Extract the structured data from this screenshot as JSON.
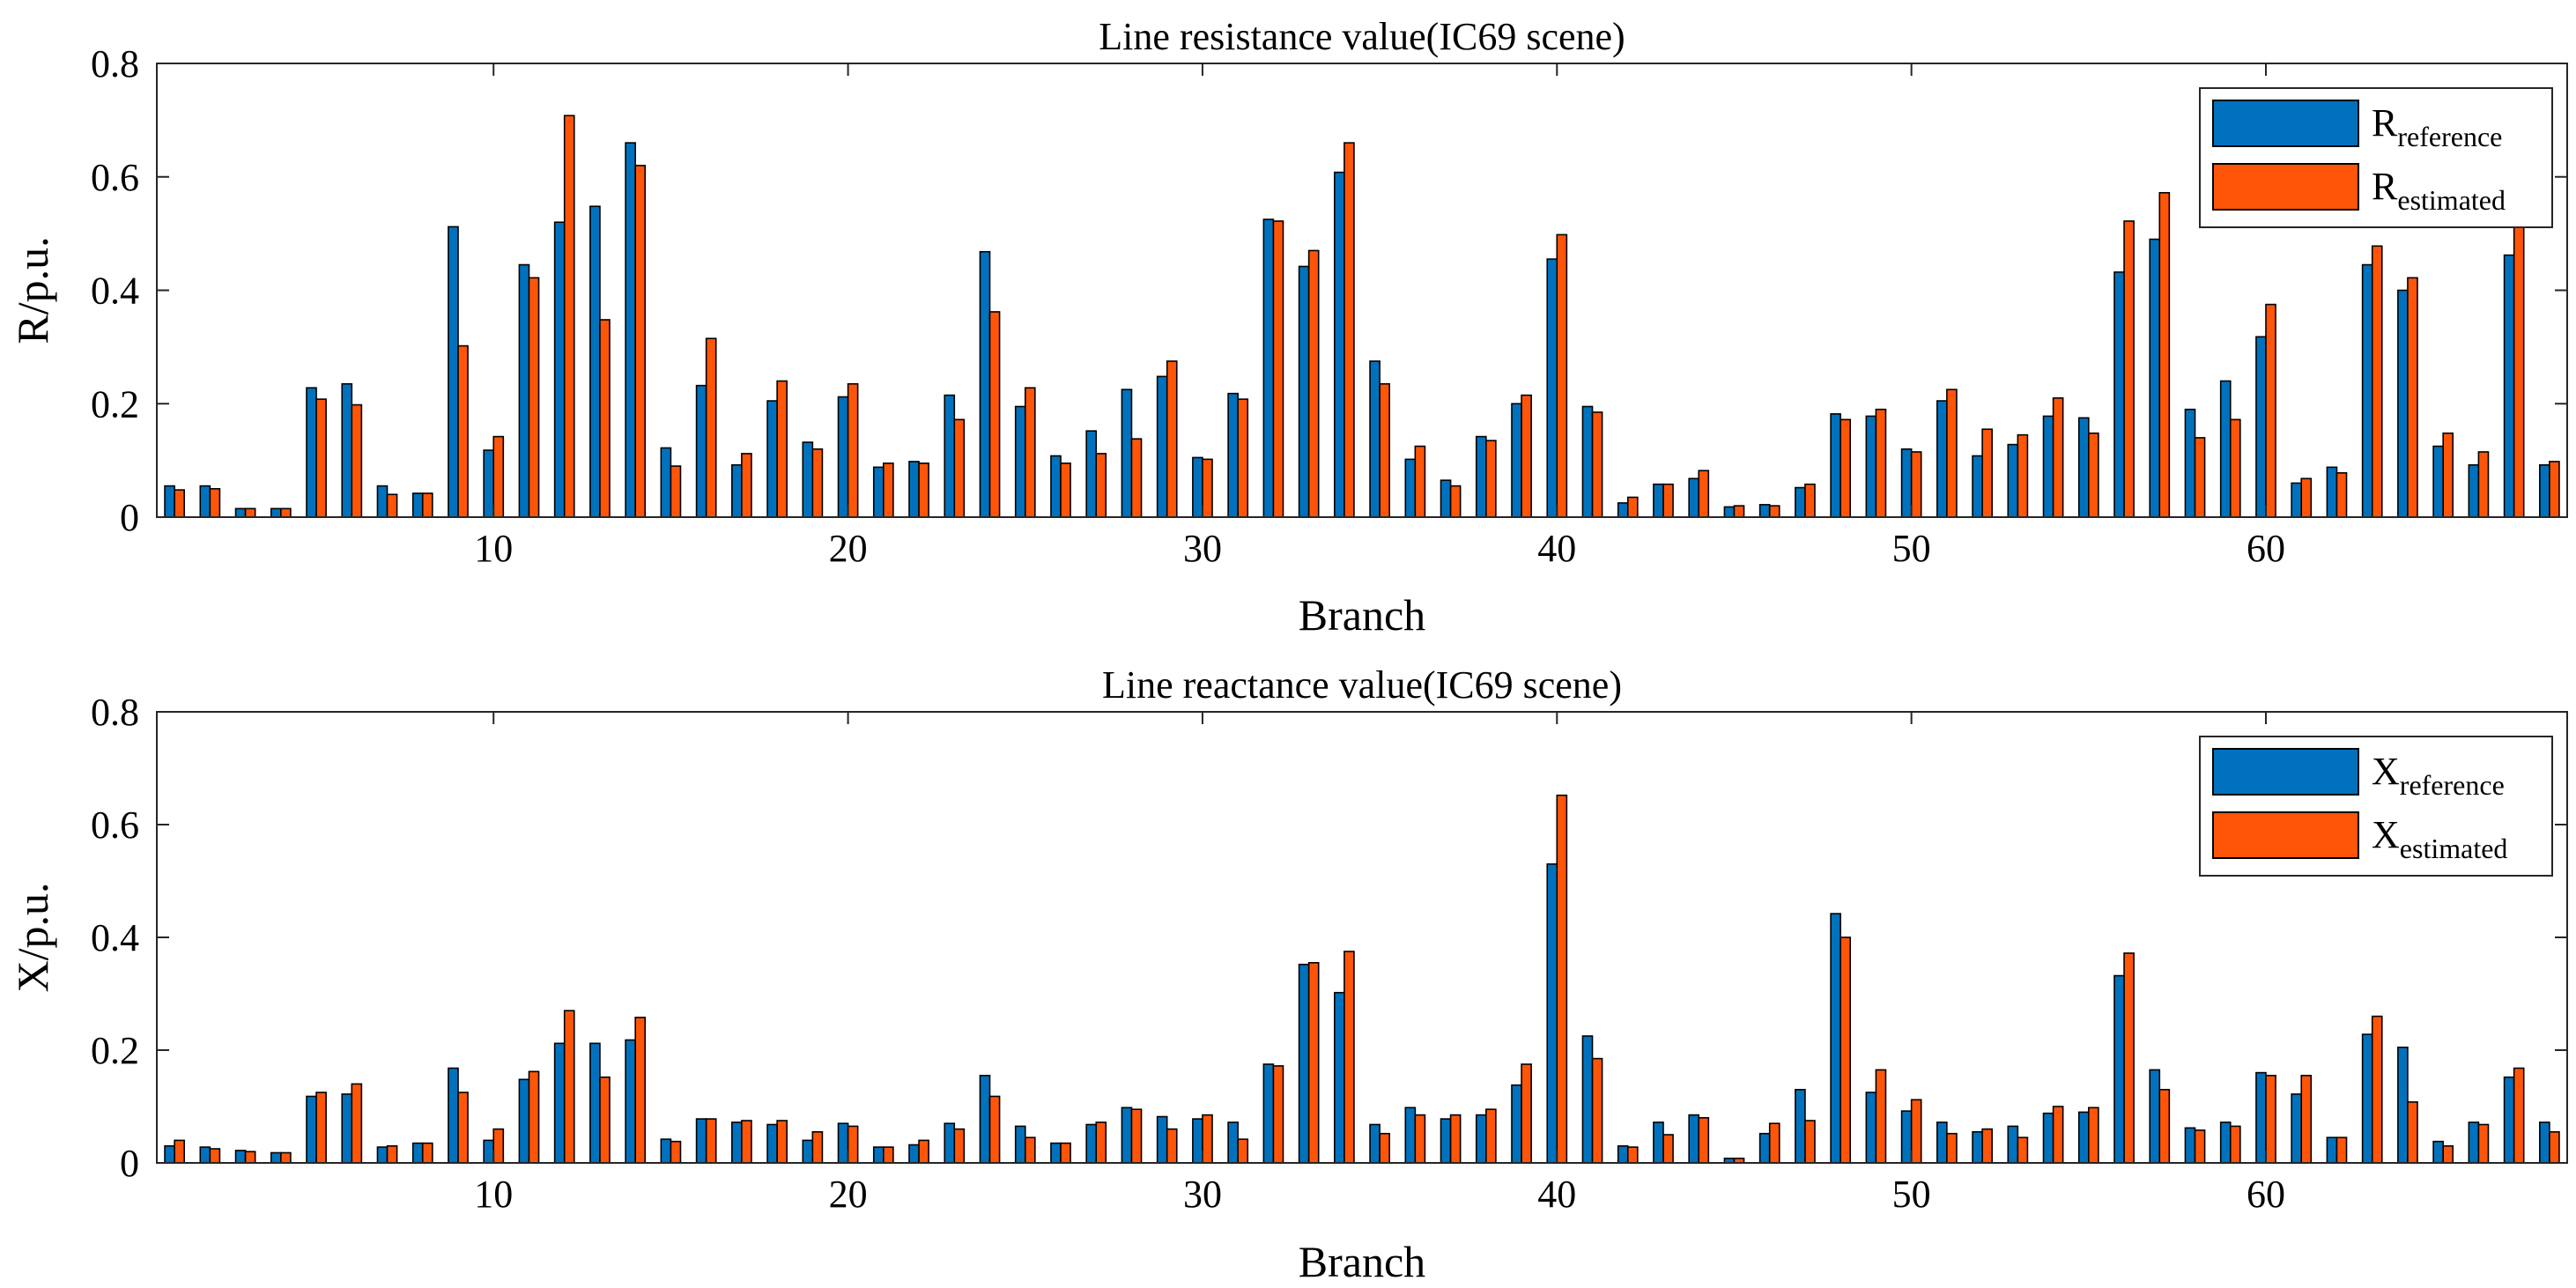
{
  "chart_data": [
    {
      "type": "bar",
      "title": "Line resistance value(IC69 scene)",
      "xlabel": "Branch",
      "ylabel": "R/p.u.",
      "xlim": [
        0.5,
        68.5
      ],
      "ylim": [
        0,
        0.8
      ],
      "xticks": [
        10,
        20,
        30,
        40,
        50,
        60
      ],
      "xtick_labels": [
        "10",
        "20",
        "30",
        "40",
        "50",
        "60"
      ],
      "yticks": [
        0,
        0.2,
        0.4,
        0.6,
        0.8
      ],
      "ytick_labels": [
        "0",
        "0.2",
        "0.4",
        "0.6",
        "0.8"
      ],
      "legend_position": "top-right",
      "series": [
        {
          "name": "R_reference",
          "label_main": "R",
          "label_sub": "reference",
          "color": "#0072BD",
          "values": [
            0.055,
            0.055,
            0.015,
            0.015,
            0.228,
            0.235,
            0.055,
            0.042,
            0.512,
            0.118,
            0.445,
            0.52,
            0.548,
            0.66,
            0.122,
            0.232,
            0.092,
            0.205,
            0.132,
            0.212,
            0.088,
            0.098,
            0.215,
            0.468,
            0.195,
            0.108,
            0.152,
            0.225,
            0.248,
            0.105,
            0.218,
            0.525,
            0.442,
            0.608,
            0.275,
            0.102,
            0.065,
            0.142,
            0.2,
            0.455,
            0.195,
            0.025,
            0.058,
            0.068,
            0.018,
            0.022,
            0.052,
            0.182,
            0.178,
            0.12,
            0.205,
            0.108,
            0.128,
            0.178,
            0.175,
            0.432,
            0.49,
            0.19,
            0.24,
            0.318,
            0.06,
            0.088,
            0.445,
            0.4,
            0.125,
            0.092,
            0.462,
            0.092
          ]
        },
        {
          "name": "R_estimated",
          "label_main": "R",
          "label_sub": "estimated",
          "color": "#FF5508",
          "values": [
            0.048,
            0.05,
            0.015,
            0.015,
            0.208,
            0.198,
            0.04,
            0.042,
            0.302,
            0.142,
            0.422,
            0.708,
            0.348,
            0.62,
            0.09,
            0.315,
            0.112,
            0.24,
            0.12,
            0.235,
            0.095,
            0.095,
            0.172,
            0.362,
            0.228,
            0.095,
            0.112,
            0.138,
            0.275,
            0.102,
            0.208,
            0.522,
            0.47,
            0.66,
            0.235,
            0.125,
            0.055,
            0.135,
            0.215,
            0.498,
            0.185,
            0.035,
            0.058,
            0.082,
            0.02,
            0.02,
            0.058,
            0.172,
            0.19,
            0.115,
            0.225,
            0.155,
            0.145,
            0.21,
            0.148,
            0.522,
            0.572,
            0.14,
            0.172,
            0.375,
            0.068,
            0.078,
            0.478,
            0.422,
            0.148,
            0.115,
            0.54,
            0.098
          ]
        }
      ]
    },
    {
      "type": "bar",
      "title": "Line reactance value(IC69 scene)",
      "xlabel": "Branch",
      "ylabel": "X/p.u.",
      "xlim": [
        0.5,
        68.5
      ],
      "ylim": [
        0,
        0.8
      ],
      "xticks": [
        10,
        20,
        30,
        40,
        50,
        60
      ],
      "xtick_labels": [
        "10",
        "20",
        "30",
        "40",
        "50",
        "60"
      ],
      "yticks": [
        0,
        0.2,
        0.4,
        0.6,
        0.8
      ],
      "ytick_labels": [
        "0",
        "0.2",
        "0.4",
        "0.6",
        "0.8"
      ],
      "legend_position": "top-right",
      "series": [
        {
          "name": "X_reference",
          "label_main": "X",
          "label_sub": "reference",
          "color": "#0072BD",
          "values": [
            0.03,
            0.028,
            0.022,
            0.018,
            0.118,
            0.122,
            0.028,
            0.035,
            0.168,
            0.04,
            0.148,
            0.212,
            0.212,
            0.218,
            0.042,
            0.078,
            0.072,
            0.068,
            0.04,
            0.07,
            0.028,
            0.032,
            0.07,
            0.155,
            0.065,
            0.035,
            0.068,
            0.098,
            0.082,
            0.078,
            0.072,
            0.175,
            0.352,
            0.302,
            0.068,
            0.098,
            0.078,
            0.085,
            0.138,
            0.53,
            0.225,
            0.03,
            0.072,
            0.085,
            0.008,
            0.052,
            0.13,
            0.442,
            0.125,
            0.092,
            0.072,
            0.055,
            0.065,
            0.088,
            0.09,
            0.332,
            0.165,
            0.062,
            0.072,
            0.16,
            0.122,
            0.045,
            0.228,
            0.205,
            0.038,
            0.072,
            0.152,
            0.072
          ]
        },
        {
          "name": "X_estimated",
          "label_main": "X",
          "label_sub": "estimated",
          "color": "#FF5508",
          "values": [
            0.04,
            0.025,
            0.02,
            0.018,
            0.125,
            0.14,
            0.03,
            0.035,
            0.125,
            0.06,
            0.162,
            0.27,
            0.152,
            0.258,
            0.038,
            0.078,
            0.075,
            0.075,
            0.055,
            0.065,
            0.028,
            0.04,
            0.06,
            0.118,
            0.045,
            0.035,
            0.072,
            0.095,
            0.06,
            0.085,
            0.042,
            0.172,
            0.355,
            0.375,
            0.052,
            0.085,
            0.085,
            0.095,
            0.175,
            0.652,
            0.185,
            0.028,
            0.05,
            0.08,
            0.008,
            0.07,
            0.075,
            0.4,
            0.165,
            0.112,
            0.052,
            0.06,
            0.045,
            0.1,
            0.098,
            0.372,
            0.13,
            0.058,
            0.065,
            0.155,
            0.155,
            0.045,
            0.26,
            0.108,
            0.03,
            0.068,
            0.168,
            0.055
          ]
        }
      ]
    }
  ]
}
